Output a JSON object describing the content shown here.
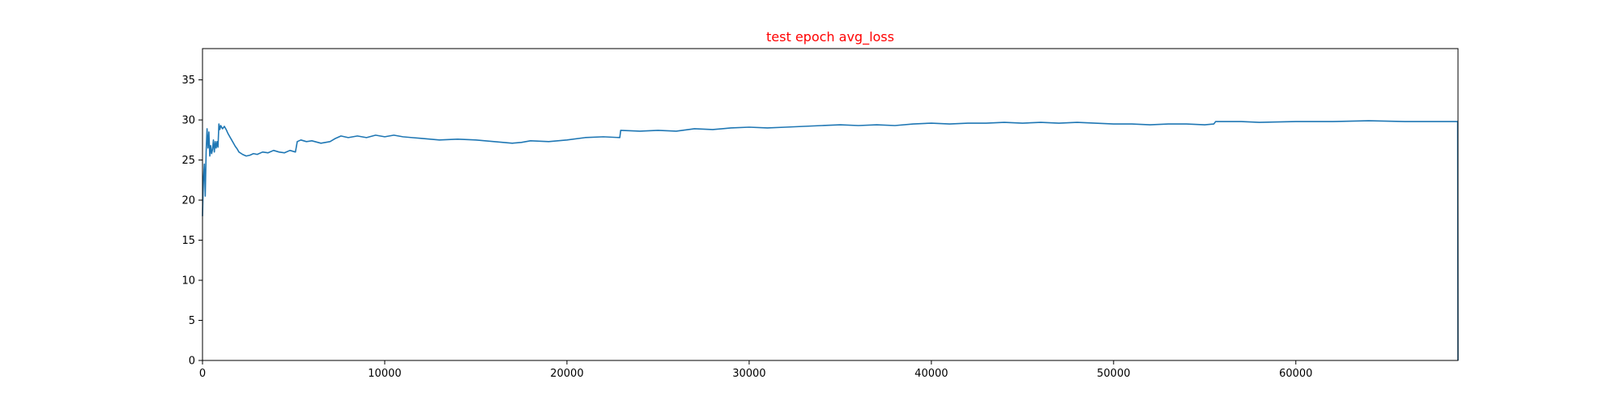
{
  "chart_data": {
    "type": "line",
    "title": "test epoch avg_loss",
    "title_color": "#ff0000",
    "xlabel": "",
    "ylabel": "",
    "xlim": [
      0,
      68900
    ],
    "ylim": [
      0,
      38.9
    ],
    "grid": false,
    "line_color": "#1f77b4",
    "x_ticks": [
      0,
      10000,
      20000,
      30000,
      40000,
      50000,
      60000
    ],
    "x_tick_labels": [
      "0",
      "10000",
      "20000",
      "30000",
      "40000",
      "50000",
      "60000"
    ],
    "y_ticks": [
      0,
      5,
      10,
      15,
      20,
      25,
      30,
      35
    ],
    "y_tick_labels": [
      "0",
      "5",
      "10",
      "15",
      "20",
      "25",
      "30",
      "35"
    ],
    "series": [
      {
        "x": [
          0,
          30,
          60,
          100,
          150,
          200,
          250,
          300,
          350,
          400,
          450,
          500,
          550,
          600,
          650,
          700,
          750,
          800,
          850,
          900,
          950,
          1000,
          1100,
          1200,
          1300,
          1400,
          1500,
          1600,
          1700,
          1800,
          1900,
          2000,
          2200,
          2400,
          2600,
          2800,
          3000,
          3300,
          3600,
          3900,
          4200,
          4500,
          4800,
          5100,
          5200,
          5400,
          5700,
          6000,
          6500,
          7000,
          7300,
          7600,
          8000,
          8500,
          9000,
          9500,
          10000,
          10500,
          11000,
          11500,
          12000,
          13000,
          14000,
          15000,
          16000,
          17000,
          17500,
          18000,
          19000,
          20000,
          21000,
          22000,
          22900,
          22950,
          24000,
          25000,
          26000,
          27000,
          28000,
          29000,
          30000,
          31000,
          32000,
          33000,
          34000,
          35000,
          36000,
          37000,
          38000,
          39000,
          40000,
          41000,
          42000,
          43000,
          44000,
          45000,
          46000,
          47000,
          48000,
          49000,
          50000,
          51000,
          52000,
          53000,
          54000,
          55000,
          55500,
          55600,
          57000,
          58000,
          60000,
          62000,
          64000,
          66000,
          68000,
          68850,
          68880,
          68900
        ],
        "y": [
          18.0,
          21.0,
          23.0,
          24.5,
          20.5,
          26.0,
          28.9,
          26.5,
          28.5,
          25.5,
          26.8,
          25.8,
          26.3,
          27.5,
          26.0,
          27.3,
          26.5,
          27.3,
          26.6,
          29.5,
          28.8,
          29.3,
          28.9,
          29.2,
          28.8,
          28.3,
          27.9,
          27.5,
          27.1,
          26.7,
          26.4,
          26.0,
          25.7,
          25.5,
          25.6,
          25.8,
          25.7,
          26.0,
          25.9,
          26.2,
          26.0,
          25.9,
          26.2,
          26.0,
          27.3,
          27.5,
          27.3,
          27.4,
          27.1,
          27.3,
          27.7,
          28.0,
          27.8,
          28.0,
          27.8,
          28.1,
          27.9,
          28.1,
          27.9,
          27.8,
          27.7,
          27.5,
          27.6,
          27.5,
          27.3,
          27.1,
          27.2,
          27.4,
          27.3,
          27.5,
          27.8,
          27.9,
          27.8,
          28.7,
          28.6,
          28.7,
          28.6,
          28.9,
          28.8,
          29.0,
          29.1,
          29.0,
          29.1,
          29.2,
          29.3,
          29.4,
          29.3,
          29.4,
          29.3,
          29.5,
          29.6,
          29.5,
          29.6,
          29.6,
          29.7,
          29.6,
          29.7,
          29.6,
          29.7,
          29.6,
          29.5,
          29.5,
          29.4,
          29.5,
          29.5,
          29.4,
          29.5,
          29.8,
          29.8,
          29.7,
          29.8,
          29.8,
          29.9,
          29.8,
          29.8,
          29.8,
          29.8,
          0
        ]
      }
    ]
  }
}
